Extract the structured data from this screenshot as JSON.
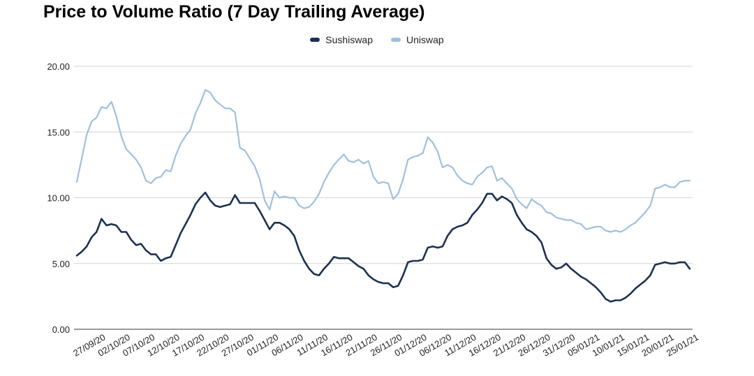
{
  "chart_data": {
    "type": "line",
    "title": "Price to Volume Ratio (7 Day Trailing Average)",
    "ylim": [
      0,
      20
    ],
    "yticks": [
      "0.00",
      "5.00",
      "10.00",
      "15.00",
      "20.00"
    ],
    "yticks_values": [
      0,
      5,
      10,
      15,
      20
    ],
    "grid": true,
    "legend": "top-center",
    "x_tick_labels": [
      "27/09/20",
      "02/10/20",
      "07/10/20",
      "12/10/20",
      "17/10/20",
      "22/10/20",
      "27/10/20",
      "01/11/20",
      "06/11/20",
      "11/11/20",
      "16/11/20",
      "21/11/20",
      "26/11/20",
      "01/12/20",
      "06/12/20",
      "11/12/20",
      "16/12/20",
      "21/12/20",
      "26/12/20",
      "31/12/20",
      "05/01/21",
      "10/01/21",
      "15/01/21",
      "20/01/21",
      "25/01/21"
    ],
    "x_start": "2020-09-27",
    "series": [
      {
        "name": "Sushiswap",
        "color": "#1b3152",
        "values": [
          5.6,
          5.9,
          6.3,
          7.0,
          7.4,
          8.4,
          7.9,
          8.0,
          7.9,
          7.4,
          7.4,
          6.8,
          6.4,
          6.5,
          6.0,
          5.7,
          5.7,
          5.2,
          5.4,
          5.5,
          6.4,
          7.3,
          8.0,
          8.7,
          9.5,
          10.0,
          10.4,
          9.8,
          9.4,
          9.3,
          9.4,
          9.5,
          10.2,
          9.6,
          9.6,
          9.6,
          9.6,
          9.0,
          8.3,
          7.6,
          8.1,
          8.1,
          7.9,
          7.6,
          7.1,
          6.0,
          5.2,
          4.6,
          4.2,
          4.1,
          4.6,
          5.0,
          5.5,
          5.4,
          5.4,
          5.4,
          5.1,
          4.8,
          4.6,
          4.1,
          3.8,
          3.6,
          3.5,
          3.5,
          3.2,
          3.3,
          4.1,
          5.1,
          5.2,
          5.2,
          5.3,
          6.2,
          6.3,
          6.2,
          6.3,
          7.1,
          7.6,
          7.8,
          7.9,
          8.1,
          8.7,
          9.1,
          9.6,
          10.3,
          10.3,
          9.8,
          10.1,
          9.9,
          9.6,
          8.7,
          8.1,
          7.6,
          7.4,
          7.1,
          6.6,
          5.4,
          4.9,
          4.6,
          4.7,
          5.0,
          4.6,
          4.3,
          4.0,
          3.8,
          3.5,
          3.2,
          2.8,
          2.3,
          2.1,
          2.2,
          2.2,
          2.4,
          2.7,
          3.1,
          3.4,
          3.7,
          4.1,
          4.9,
          5.0,
          5.1,
          5.0,
          5.0,
          5.1,
          5.1,
          4.6
        ]
      },
      {
        "name": "Uniswap",
        "color": "#9fc0de",
        "values": [
          11.2,
          13.0,
          14.8,
          15.8,
          16.1,
          16.9,
          16.8,
          17.3,
          16.2,
          14.7,
          13.7,
          13.3,
          12.9,
          12.3,
          11.3,
          11.1,
          11.5,
          11.6,
          12.1,
          12.0,
          13.2,
          14.1,
          14.7,
          15.2,
          16.4,
          17.2,
          18.2,
          18.0,
          17.4,
          17.1,
          16.8,
          16.8,
          16.5,
          13.8,
          13.6,
          13.0,
          12.4,
          11.4,
          9.8,
          9.1,
          10.5,
          10.0,
          10.1,
          10.0,
          10.0,
          9.4,
          9.2,
          9.3,
          9.7,
          10.3,
          11.2,
          11.9,
          12.5,
          12.9,
          13.3,
          12.8,
          12.7,
          12.9,
          12.6,
          12.8,
          11.6,
          11.1,
          11.2,
          11.1,
          9.9,
          10.3,
          11.4,
          12.9,
          13.1,
          13.2,
          13.4,
          14.6,
          14.2,
          13.5,
          12.3,
          12.5,
          12.3,
          11.7,
          11.3,
          11.1,
          11.0,
          11.6,
          11.9,
          12.3,
          12.4,
          11.3,
          11.5,
          11.1,
          10.7,
          9.9,
          9.5,
          9.2,
          9.9,
          9.6,
          9.4,
          8.9,
          8.8,
          8.5,
          8.4,
          8.3,
          8.3,
          8.1,
          8.0,
          7.6,
          7.7,
          7.8,
          7.8,
          7.5,
          7.4,
          7.5,
          7.4,
          7.6,
          7.9,
          8.1,
          8.5,
          8.9,
          9.4,
          10.7,
          10.8,
          11.0,
          10.8,
          10.8,
          11.2,
          11.3,
          11.3
        ]
      }
    ]
  }
}
